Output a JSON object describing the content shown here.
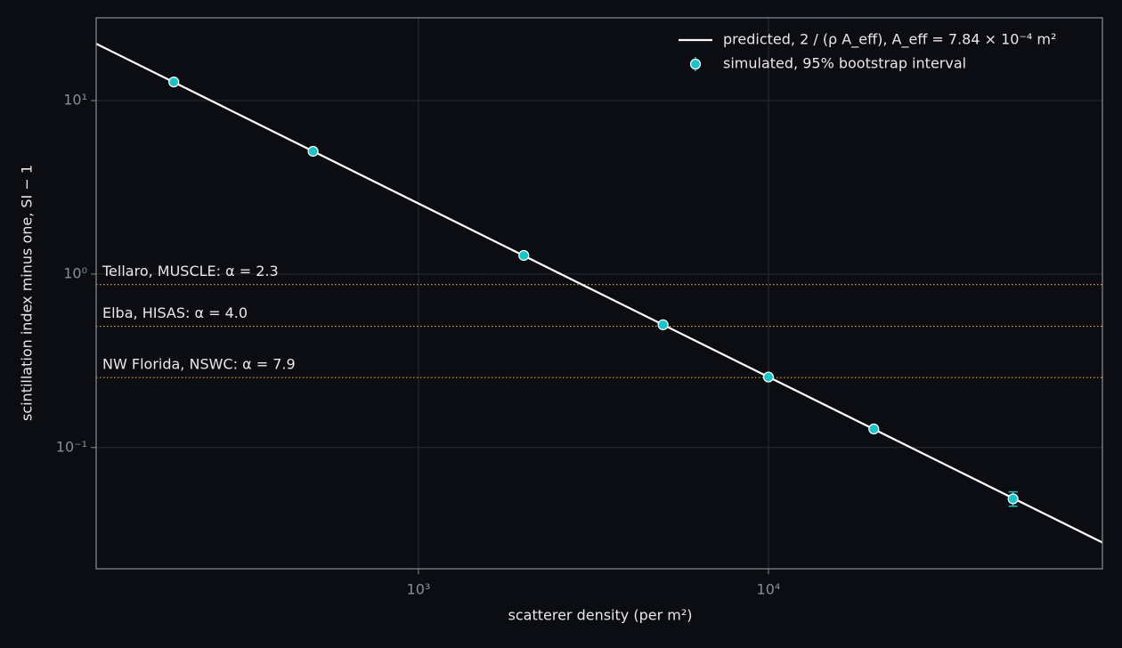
{
  "chart_data": {
    "type": "line",
    "x_label": "scatterer density (per m²)",
    "y_label": "scintillation index minus one, SI − 1",
    "xscale": "log",
    "yscale": "log",
    "xlim": [
      120,
      90000
    ],
    "ylim": [
      0.02,
      30
    ],
    "xticks": [
      {
        "value": 1000,
        "label": "10³"
      },
      {
        "value": 10000,
        "label": "10⁴"
      }
    ],
    "yticks": [
      {
        "value": 0.1,
        "label": "10⁻¹"
      },
      {
        "value": 1,
        "label": "10⁰"
      },
      {
        "value": 10,
        "label": "10¹"
      }
    ],
    "grid": true,
    "legend": "upper right",
    "series": [
      {
        "name": "predicted, 2 / (ρ A_eff), A_eff = 7.84 × 10⁻⁴ m²",
        "kind": "line",
        "color": "#ffffff",
        "x": [
          120,
          90000
        ],
        "values": [
          21.26,
          0.02835
        ]
      },
      {
        "name": "simulated, 95% bootstrap interval",
        "kind": "scatter",
        "color": "#1cc4c8",
        "x": [
          200,
          500,
          2000,
          5000,
          10000,
          20000,
          50000
        ],
        "values": [
          12.8,
          5.1,
          1.28,
          0.51,
          0.255,
          0.128,
          0.0506
        ],
        "lower": [
          12.6,
          5.03,
          1.26,
          0.503,
          0.251,
          0.126,
          0.0459
        ],
        "upper": [
          13.0,
          5.17,
          1.3,
          0.517,
          0.259,
          0.13,
          0.0555
        ]
      }
    ],
    "reference_lines": [
      {
        "label": "Tellaro, MUSCLE: α = 2.3",
        "value": 0.87,
        "color": "#e0a847"
      },
      {
        "label": "Elba, HISAS: α = 4.0",
        "value": 0.5,
        "color": "#e0a847"
      },
      {
        "label": "NW Florida, NSWC: α = 7.9",
        "value": 0.253,
        "color": "#e0a847"
      }
    ]
  }
}
